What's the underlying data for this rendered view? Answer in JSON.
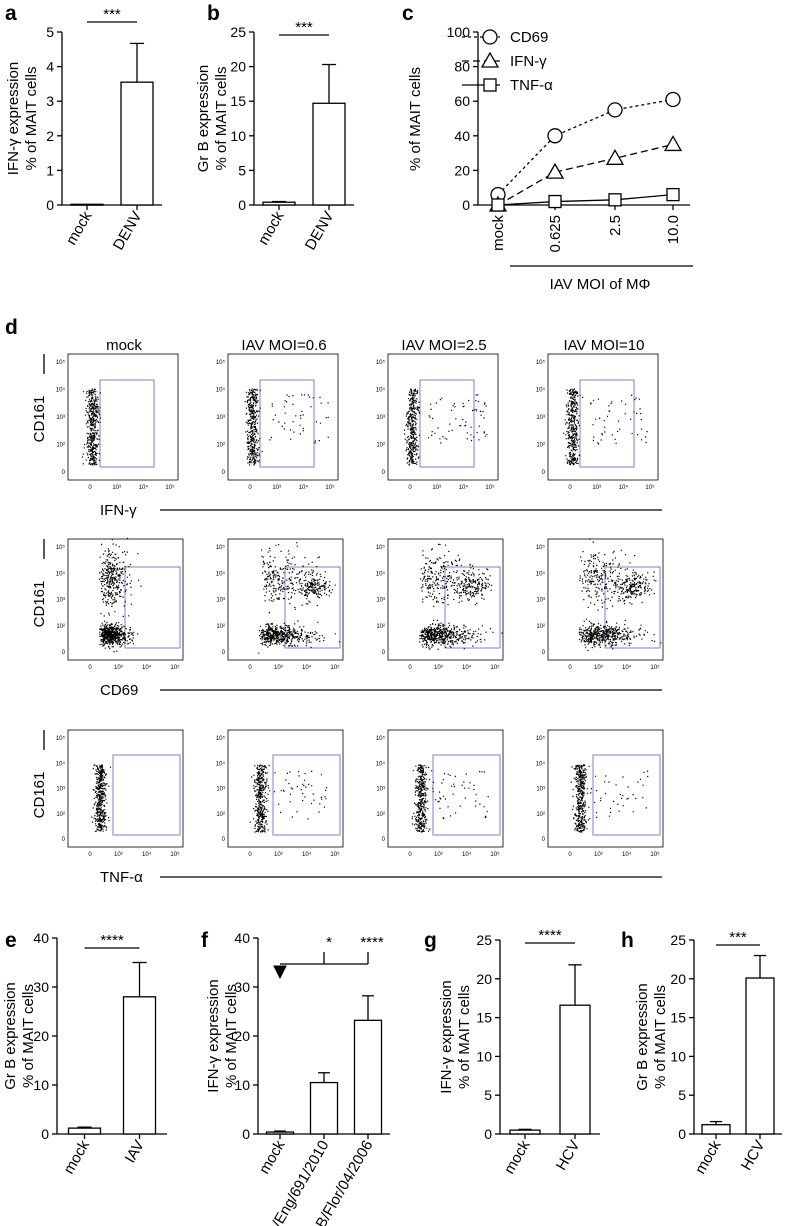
{
  "chart_data": [
    {
      "panel": "a",
      "type": "bar",
      "categories": [
        "mock",
        "DENV"
      ],
      "values": [
        0.02,
        3.55
      ],
      "errors": [
        0.0,
        1.12
      ],
      "ylabel": "IFN-γ expression\n% of MAIT cells",
      "ylim": [
        0,
        5
      ],
      "yticks": [
        0,
        1,
        2,
        3,
        4,
        5
      ],
      "significance": "***"
    },
    {
      "panel": "b",
      "type": "bar",
      "categories": [
        "mock",
        "DENV"
      ],
      "values": [
        0.4,
        14.7
      ],
      "errors": [
        0.1,
        5.6
      ],
      "ylabel": "Gr B expression\n% of MAIT cells",
      "ylim": [
        0,
        25
      ],
      "yticks": [
        0,
        5,
        10,
        15,
        20,
        25
      ],
      "significance": "***"
    },
    {
      "panel": "c",
      "type": "line",
      "categories": [
        "mock",
        "0.625",
        "2.5",
        "10.0"
      ],
      "xlabel": "IAV MOI of MΦ",
      "ylabel": "% of MAIT cells",
      "ylim": [
        0,
        100
      ],
      "yticks": [
        0,
        20,
        40,
        60,
        80,
        100
      ],
      "legend": "top-left",
      "series": [
        {
          "name": "CD69",
          "marker": "circle",
          "linestyle": "dotted",
          "values": [
            6,
            40,
            55,
            61
          ]
        },
        {
          "name": "IFN-γ",
          "marker": "triangle",
          "linestyle": "dashed",
          "values": [
            0,
            19,
            27,
            35
          ]
        },
        {
          "name": "TNF-α",
          "marker": "square",
          "linestyle": "solid",
          "values": [
            0,
            2,
            3,
            6
          ]
        }
      ]
    },
    {
      "panel": "e",
      "type": "bar",
      "categories": [
        "mock",
        "IAV"
      ],
      "values": [
        1.2,
        28.0
      ],
      "errors": [
        0.2,
        7.0
      ],
      "ylabel": "Gr B expression\n% of MAIT cells",
      "ylim": [
        0,
        40
      ],
      "yticks": [
        0,
        10,
        20,
        30,
        40
      ],
      "significance": "****"
    },
    {
      "panel": "f",
      "type": "bar",
      "categories": [
        "mock",
        "A/Eng/691/2010",
        "B/Flor/04/2006"
      ],
      "values": [
        0.4,
        10.5,
        23.2
      ],
      "errors": [
        0.2,
        2.0,
        5.0
      ],
      "ylabel": "IFN-γ expression\n% of MAIT cells",
      "ylim": [
        0,
        40
      ],
      "yticks": [
        0,
        10,
        20,
        30,
        40
      ],
      "significance": [
        "*",
        "****"
      ]
    },
    {
      "panel": "g",
      "type": "bar",
      "categories": [
        "mock",
        "HCV"
      ],
      "values": [
        0.5,
        16.6
      ],
      "errors": [
        0.1,
        5.2
      ],
      "ylabel": "IFN-γ expression\n% of MAIT cells",
      "ylim": [
        0,
        25
      ],
      "yticks": [
        0,
        5,
        10,
        15,
        20,
        25
      ],
      "significance": "****"
    },
    {
      "panel": "h",
      "type": "bar",
      "categories": [
        "mock",
        "HCV"
      ],
      "values": [
        1.2,
        20.1
      ],
      "errors": [
        0.4,
        2.9
      ],
      "ylabel": "Gr B expression\n% of MAIT cells",
      "ylim": [
        0,
        25
      ],
      "yticks": [
        0,
        5,
        10,
        15,
        20,
        25
      ],
      "significance": "***"
    },
    {
      "panel": "d",
      "type": "scatter",
      "column_titles": [
        "mock",
        "IAV MOI=0.6",
        "IAV MOI=2.5",
        "IAV MOI=10"
      ],
      "ylabel": "CD161",
      "row_labels": [
        "IFN-γ",
        "CD69",
        "TNF-α"
      ],
      "axis_ticks_y": [
        "10⁵",
        "10⁴",
        "10³",
        "10²",
        "0"
      ],
      "axis_ticks_x": [
        "0",
        "10³",
        "10⁴",
        "10⁵"
      ],
      "gate_color": "#8080c8"
    }
  ],
  "labels": {
    "a": "a",
    "b": "b",
    "c": "c",
    "d": "d",
    "e": "e",
    "f": "f",
    "g": "g",
    "h": "h"
  }
}
